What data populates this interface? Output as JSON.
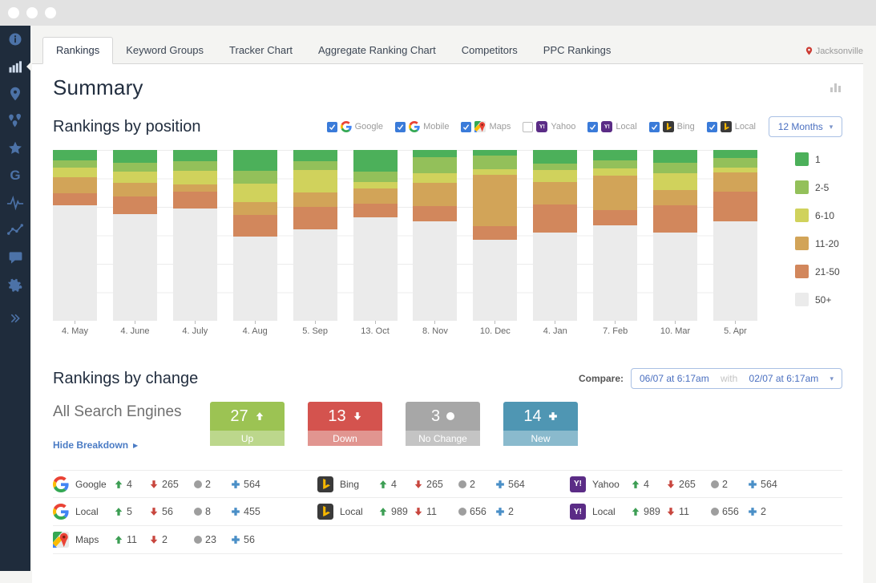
{
  "window": {
    "dots": [
      "close",
      "minimize",
      "maximize"
    ]
  },
  "sidebar": {
    "icons": [
      "info",
      "bar-chart",
      "map-pin",
      "map-pins",
      "star",
      "google-g",
      "pulse",
      "trend-line",
      "comment",
      "gear",
      "expand-chevrons"
    ],
    "active_icon": "bar-chart"
  },
  "tabs": {
    "items": [
      "Rankings",
      "Keyword Groups",
      "Tracker Chart",
      "Aggregate Ranking Chart",
      "Competitors",
      "PPC Rankings"
    ],
    "active_index": 0,
    "location": "Jacksonville",
    "location_icon": "map-pin-icon",
    "location_pin_color": "#cc3b33"
  },
  "page_title": "Summary",
  "position_section": {
    "title": "Rankings by position",
    "filters": [
      {
        "label": "Google",
        "engine": "google",
        "checked": true
      },
      {
        "label": "Mobile",
        "engine": "google",
        "checked": true
      },
      {
        "label": "Maps",
        "engine": "maps",
        "checked": true
      },
      {
        "label": "Yahoo",
        "engine": "yahoo",
        "checked": false
      },
      {
        "label": "Local",
        "engine": "yahoo",
        "checked": true
      },
      {
        "label": "Bing",
        "engine": "bing",
        "checked": true
      },
      {
        "label": "Local",
        "engine": "bing",
        "checked": true
      }
    ],
    "range_dropdown": "12 Months"
  },
  "chart_data": {
    "type": "bar",
    "stacked": true,
    "unit": "percent-of-keywords",
    "grid": true,
    "legend_position": "right",
    "ylim": [
      0,
      100
    ],
    "categories": [
      "4. May",
      "4. June",
      "4. July",
      "4. Aug",
      "5. Sep",
      "13. Oct",
      "8. Nov",
      "10. Dec",
      "4. Jan",
      "7. Feb",
      "10. Mar",
      "5. Apr"
    ],
    "series": [
      {
        "name": "1",
        "color": "#4cb05a",
        "values": [
          6.1,
          7.6,
          6.6,
          12.3,
          6.6,
          12.7,
          4.2,
          3.3,
          8.0,
          6.2,
          7.5,
          4.7
        ]
      },
      {
        "name": "2-5",
        "color": "#93c05a",
        "values": [
          4.2,
          5.2,
          5.7,
          7.5,
          5.2,
          6.1,
          9.5,
          8.1,
          3.8,
          4.7,
          6.1,
          5.7
        ]
      },
      {
        "name": "6-10",
        "color": "#d0d25c",
        "values": [
          5.7,
          6.6,
          8.0,
          10.8,
          13.2,
          3.8,
          5.7,
          3.3,
          7.1,
          4.3,
          9.9,
          2.8
        ]
      },
      {
        "name": "11-20",
        "color": "#d2a458",
        "values": [
          9.4,
          8.0,
          4.2,
          7.5,
          8.5,
          9.0,
          13.3,
          30.0,
          13.2,
          19.9,
          9.0,
          11.3
        ]
      },
      {
        "name": "21-50",
        "color": "#d2875c",
        "values": [
          7.1,
          10.4,
          9.9,
          12.7,
          13.2,
          8.0,
          9.0,
          8.1,
          16.5,
          9.0,
          16.0,
          17.5
        ]
      },
      {
        "name": "50+",
        "color": "#ebebeb",
        "values": [
          67.5,
          62.2,
          65.6,
          49.2,
          53.3,
          60.4,
          58.3,
          47.2,
          51.4,
          55.9,
          51.5,
          58.0
        ]
      }
    ]
  },
  "change_section": {
    "title": "Rankings by change",
    "compare_label": "Compare:",
    "compare_from": "06/07 at 6:17am",
    "compare_with_word": "with",
    "compare_to": "02/07 at 6:17am",
    "subtitle": "All Search Engines",
    "breakdown_toggle": "Hide Breakdown",
    "badges": [
      {
        "value": "27",
        "label": "Up",
        "icon": "arrow-up-icon",
        "color": "#9cc353",
        "color_light": "#bcd78c"
      },
      {
        "value": "13",
        "label": "Down",
        "icon": "arrow-down-icon",
        "color": "#d4534e",
        "color_light": "#e19590"
      },
      {
        "value": "3",
        "label": "No Change",
        "icon": "circle-icon",
        "color": "#a7a7a7",
        "color_light": "#c4c4c4"
      },
      {
        "value": "14",
        "label": "New",
        "icon": "plus-icon",
        "color": "#4f96b3",
        "color_light": "#8abacd"
      }
    ],
    "stat_colors": {
      "up": "#3d9e54",
      "down": "#c8463e",
      "nochange": "#9e9e9e",
      "new": "#4a8fc7"
    },
    "breakdown_rows": [
      [
        {
          "engine": "google",
          "label": "Google",
          "up": "4",
          "down": "265",
          "nochange": "2",
          "new": "564"
        },
        {
          "engine": "bing",
          "label": "Bing",
          "up": "4",
          "down": "265",
          "nochange": "2",
          "new": "564"
        },
        {
          "engine": "yahoo",
          "label": "Yahoo",
          "up": "4",
          "down": "265",
          "nochange": "2",
          "new": "564"
        }
      ],
      [
        {
          "engine": "google",
          "label": "Local",
          "up": "5",
          "down": "56",
          "nochange": "8",
          "new": "455"
        },
        {
          "engine": "bing",
          "label": "Local",
          "up": "989",
          "down": "11",
          "nochange": "656",
          "new": "2"
        },
        {
          "engine": "yahoo",
          "label": "Local",
          "up": "989",
          "down": "11",
          "nochange": "656",
          "new": "2"
        }
      ],
      [
        {
          "engine": "maps",
          "label": "Maps",
          "up": "11",
          "down": "2",
          "nochange": "23",
          "new": "56"
        },
        null,
        null
      ]
    ]
  }
}
